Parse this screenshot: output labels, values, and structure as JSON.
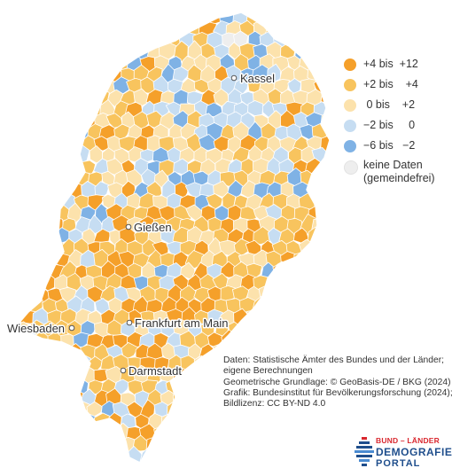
{
  "colors": {
    "strong_positive": "#f5a02a",
    "positive": "#f8c45e",
    "neutral": "#fce2ac",
    "slight_negative": "#c6ddf2",
    "negative": "#7fb2e5",
    "no_data": "#eeeeee",
    "border": "#ffffff"
  },
  "legend": {
    "items": [
      {
        "label": "+4 bis  +12",
        "color": "#f5a02a"
      },
      {
        "label": "+2 bis    +4",
        "color": "#f8c45e"
      },
      {
        "label": " 0 bis    +2",
        "color": "#fce2ac"
      },
      {
        "label": "−2 bis     0",
        "color": "#c6ddf2"
      },
      {
        "label": "−6 bis   −2",
        "color": "#7fb2e5"
      },
      {
        "label": "keine Daten\n(gemeindefrei)",
        "color": "#eeeeee"
      }
    ]
  },
  "cities": [
    {
      "name": "Kassel"
    },
    {
      "name": "Gießen"
    },
    {
      "name": "Frankfurt am Main"
    },
    {
      "name": "Wiesbaden"
    },
    {
      "name": "Darmstadt"
    }
  ],
  "source": {
    "lines": [
      "Daten: Statistische Ämter des Bundes und der Länder;",
      "eigene Berechnungen",
      "Geometrische Grundlage: © GeoBasis-DE / BKG (2024)",
      "Grafik: Bundesinstitut für Bevölkerungsforschung (2024);",
      "Bildlizenz: CC BY-ND 4.0"
    ]
  },
  "logo": {
    "top_line": "BUND – LÄNDER",
    "main_line": "DEMOGRAFIE",
    "sub_line": "PORTAL",
    "icon": "stacked-bars-logo-icon"
  }
}
